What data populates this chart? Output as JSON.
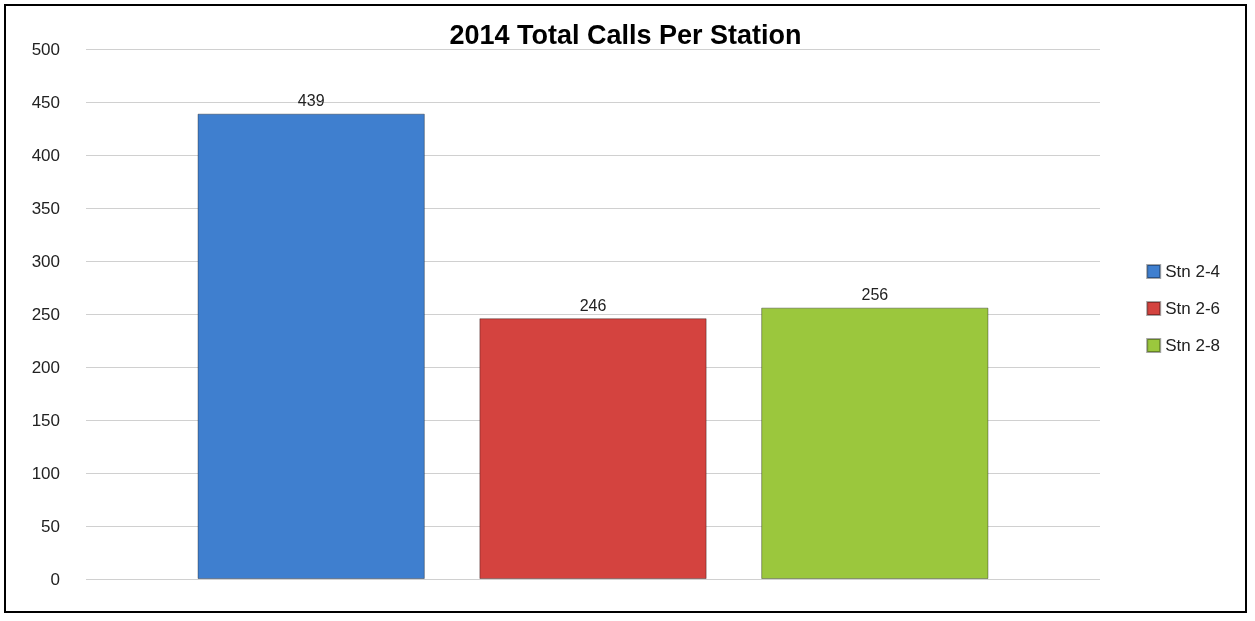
{
  "chart_data": {
    "type": "bar",
    "title": "2014 Total Calls Per Station",
    "categories": [
      null
    ],
    "series": [
      {
        "name": "Stn 2-4",
        "color": "#3f7fcf",
        "values": [
          439
        ]
      },
      {
        "name": "Stn 2-6",
        "color": "#d4433f",
        "values": [
          246
        ]
      },
      {
        "name": "Stn 2-8",
        "color": "#9bc73d",
        "values": [
          256
        ]
      }
    ],
    "ylim": [
      0,
      500
    ],
    "yticks": [
      0,
      50,
      100,
      150,
      200,
      250,
      300,
      350,
      400,
      450,
      500
    ],
    "grid": "y",
    "legend": "right",
    "data_labels": true
  }
}
